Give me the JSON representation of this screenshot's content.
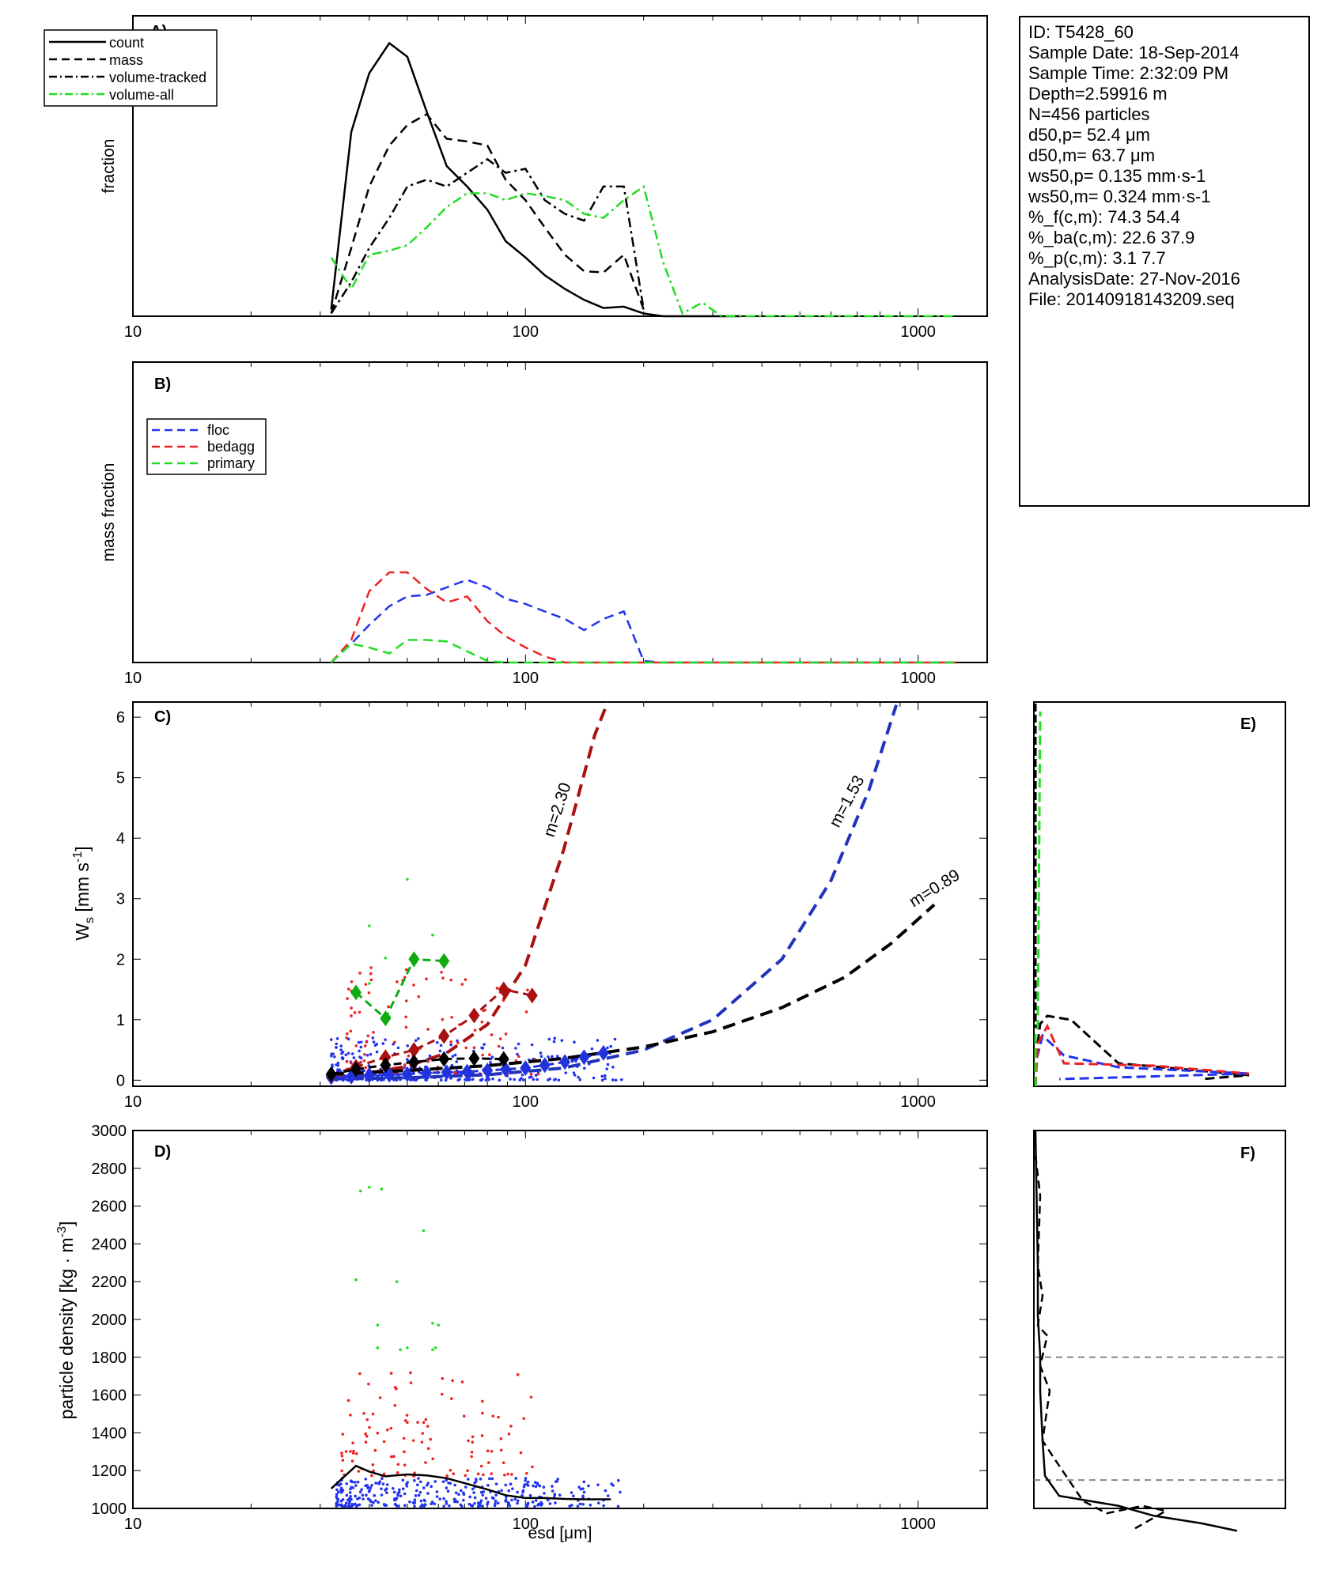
{
  "info": {
    "id": "ID: T5428_60",
    "sample_date": "Sample Date: 18-Sep-2014",
    "sample_time": "Sample Time:  2:32:09 PM",
    "depth": "Depth=2.59916 m",
    "n": "N=456 particles",
    "d50p": "d50,p=  52.4 μm",
    "d50m": "d50,m=  63.7 μm",
    "ws50p": "ws50,p= 0.135 mm·s-1",
    "ws50m": "ws50,m= 0.324 mm·s-1",
    "pf": "%_f(c,m): 74.3 54.4",
    "pba": "%_ba(c,m): 22.6 37.9",
    "pp": "%_p(c,m): 3.1 7.7",
    "analysis_date": "AnalysisDate: 27-Nov-2016",
    "file": "File: 20140918143209.seq"
  },
  "chart_data": [
    {
      "panel": "A)",
      "type": "line",
      "ylabel": "fraction",
      "x_scale": "log",
      "xlim": [
        10,
        1500
      ],
      "xticks": [
        "10",
        "100",
        "1000"
      ],
      "ylim": [
        0,
        0.22
      ],
      "legend": [
        "count",
        "mass",
        "volume-tracked",
        "volume-all"
      ],
      "legend_placement": "top-left",
      "series": [
        {
          "name": "count",
          "color": "#000000",
          "dash": "solid",
          "x": [
            32,
            36,
            40,
            45,
            50,
            56,
            63,
            71,
            80,
            89,
            100,
            112,
            126,
            141,
            158,
            178,
            200,
            224,
            251,
            282,
            316,
            355
          ],
          "y": [
            0.005,
            0.135,
            0.178,
            0.2,
            0.19,
            0.15,
            0.11,
            0.095,
            0.078,
            0.055,
            0.043,
            0.03,
            0.02,
            0.012,
            0.006,
            0.007,
            0.002,
            0,
            0,
            0,
            0,
            0
          ]
        },
        {
          "name": "mass",
          "color": "#000000",
          "dash": "dashed",
          "x": [
            32,
            36,
            40,
            45,
            50,
            56,
            63,
            71,
            80,
            89,
            100,
            112,
            126,
            141,
            158,
            178,
            200
          ],
          "y": [
            0.002,
            0.05,
            0.095,
            0.125,
            0.14,
            0.148,
            0.13,
            0.128,
            0.125,
            0.1,
            0.085,
            0.065,
            0.045,
            0.033,
            0.032,
            0.045,
            0.005
          ]
        },
        {
          "name": "volume-tracked",
          "color": "#000000",
          "dash": "dashdot",
          "x": [
            32,
            36,
            40,
            45,
            50,
            56,
            63,
            71,
            80,
            89,
            100,
            112,
            126,
            141,
            158,
            178,
            200
          ],
          "y": [
            0.002,
            0.025,
            0.05,
            0.072,
            0.095,
            0.1,
            0.095,
            0.105,
            0.115,
            0.105,
            0.108,
            0.085,
            0.075,
            0.07,
            0.095,
            0.095,
            0.005
          ]
        },
        {
          "name": "volume-all",
          "color": "#22dd22",
          "dash": "dashdot",
          "x": [
            32,
            36,
            40,
            45,
            50,
            56,
            63,
            71,
            80,
            89,
            100,
            112,
            126,
            141,
            158,
            178,
            200,
            224,
            251,
            282,
            316,
            355,
            400,
            500,
            700,
            1000,
            1250
          ],
          "y": [
            0.043,
            0.02,
            0.045,
            0.048,
            0.052,
            0.065,
            0.08,
            0.09,
            0.09,
            0.085,
            0.09,
            0.088,
            0.085,
            0.075,
            0.072,
            0.085,
            0.095,
            0.04,
            0.002,
            0.01,
            0.0,
            0,
            0,
            0,
            0,
            0,
            0
          ]
        }
      ]
    },
    {
      "panel": "B)",
      "type": "line",
      "ylabel": "mass fraction",
      "x_scale": "log",
      "xlim": [
        10,
        1500
      ],
      "xticks": [
        "10",
        "100",
        "1000"
      ],
      "ylim": [
        0,
        0.4
      ],
      "legend": [
        "floc",
        "bedagg",
        "primary"
      ],
      "legend_placement": "top-left",
      "series": [
        {
          "name": "floc",
          "color": "#2233ee",
          "dash": "dashed",
          "x": [
            32,
            36,
            40,
            45,
            50,
            56,
            63,
            71,
            80,
            89,
            100,
            112,
            126,
            141,
            158,
            178,
            200,
            224,
            251,
            316,
            400,
            500,
            700,
            1000,
            1250
          ],
          "y": [
            0.0,
            0.025,
            0.05,
            0.075,
            0.088,
            0.09,
            0.1,
            0.11,
            0.1,
            0.085,
            0.078,
            0.068,
            0.058,
            0.043,
            0.058,
            0.068,
            0.002,
            0,
            0,
            0,
            0,
            0,
            0,
            0,
            0
          ]
        },
        {
          "name": "bedagg",
          "color": "#ee2222",
          "dash": "dashed",
          "x": [
            32,
            36,
            40,
            45,
            50,
            56,
            63,
            71,
            80,
            89,
            100,
            112,
            126,
            141,
            158,
            200,
            251,
            316,
            400,
            500,
            700,
            1000,
            1250
          ],
          "y": [
            0.0,
            0.03,
            0.095,
            0.12,
            0.12,
            0.098,
            0.08,
            0.088,
            0.055,
            0.035,
            0.02,
            0.008,
            0.0,
            0,
            0,
            0,
            0,
            0,
            0,
            0,
            0,
            0,
            0
          ]
        },
        {
          "name": "primary",
          "color": "#22dd22",
          "dash": "dashed",
          "x": [
            32,
            36,
            40,
            45,
            50,
            56,
            63,
            71,
            80,
            89,
            100,
            112,
            126,
            141,
            158,
            200,
            251,
            316,
            400,
            500,
            700,
            1000,
            1250
          ],
          "y": [
            0.0,
            0.025,
            0.02,
            0.012,
            0.03,
            0.03,
            0.028,
            0.015,
            0.002,
            0.0,
            0,
            0,
            0,
            0,
            0,
            0,
            0,
            0,
            0,
            0,
            0,
            0,
            0
          ]
        }
      ]
    },
    {
      "panel": "C)",
      "type": "scatter",
      "ylabel": "Ws [mm s-1]",
      "x_scale": "log",
      "xlim": [
        10,
        1500
      ],
      "xticks": [
        "10",
        "100",
        "1000"
      ],
      "ylim": [
        -0.1,
        6.25
      ],
      "yticks": [
        "0",
        "1",
        "2",
        "3",
        "4",
        "5",
        "6"
      ],
      "fits": [
        {
          "label": "m=2.30",
          "color": "#aa1111",
          "x": [
            32,
            40,
            50,
            63,
            80,
            100,
            125,
            150,
            162
          ],
          "y": [
            0.08,
            0.12,
            0.23,
            0.45,
            0.92,
            1.9,
            3.8,
            5.7,
            6.25
          ]
        },
        {
          "label": "m=1.53",
          "color": "#2233bb",
          "x": [
            32,
            50,
            80,
            125,
            200,
            300,
            450,
            600,
            750,
            880
          ],
          "y": [
            0.02,
            0.04,
            0.09,
            0.2,
            0.5,
            1.0,
            2.0,
            3.3,
            4.8,
            6.2
          ]
        },
        {
          "label": "m=0.89",
          "color": "#000000",
          "x": [
            32,
            50,
            80,
            125,
            200,
            300,
            450,
            650,
            850,
            1100
          ],
          "y": [
            0.1,
            0.16,
            0.24,
            0.36,
            0.55,
            0.8,
            1.2,
            1.7,
            2.25,
            2.9
          ]
        }
      ],
      "binned_means": [
        {
          "name": "floc",
          "color": "#2233dd",
          "x": [
            32,
            36,
            40,
            45,
            50,
            56,
            63,
            71,
            80,
            89,
            100,
            112,
            126,
            141,
            158
          ],
          "y": [
            0.05,
            0.06,
            0.08,
            0.09,
            0.1,
            0.12,
            0.13,
            0.14,
            0.16,
            0.18,
            0.2,
            0.25,
            0.3,
            0.38,
            0.45
          ]
        },
        {
          "name": "bedagg",
          "color": "#aa1111",
          "x": [
            32,
            37,
            44,
            52,
            62,
            74,
            88,
            104
          ],
          "y": [
            0.09,
            0.22,
            0.38,
            0.5,
            0.73,
            1.07,
            1.5,
            1.4
          ]
        },
        {
          "name": "primary",
          "color": "#11aa11",
          "x": [
            37,
            44,
            52,
            62
          ],
          "y": [
            1.45,
            1.02,
            2.0,
            1.97
          ]
        },
        {
          "name": "all",
          "color": "#000000",
          "x": [
            32,
            37,
            44,
            52,
            62,
            74,
            88
          ],
          "y": [
            0.1,
            0.18,
            0.25,
            0.3,
            0.35,
            0.36,
            0.35
          ]
        }
      ],
      "scatter_points": [
        {
          "name": "floc",
          "color": "#2233ee",
          "x_range": [
            32,
            180
          ],
          "y_range": [
            0.0,
            0.7
          ],
          "count": 320
        },
        {
          "name": "bedagg",
          "color": "#ee2222",
          "x_range": [
            35,
            110
          ],
          "y_range": [
            0.1,
            1.9
          ],
          "count": 110
        },
        {
          "name": "primary",
          "color": "#22dd22",
          "x": [
            37,
            40,
            44,
            50,
            58,
            62,
            45,
            52,
            40
          ],
          "y": [
            1.5,
            2.55,
            2.02,
            3.32,
            2.4,
            2.0,
            1.05,
            1.9,
            1.6
          ]
        }
      ]
    },
    {
      "panel": "D)",
      "type": "scatter",
      "xlabel": "esd [μm]",
      "ylabel": "particle density [kg · m-3]",
      "x_scale": "log",
      "xlim": [
        10,
        1500
      ],
      "xticks": [
        "10",
        "100",
        "1000"
      ],
      "ylim": [
        1000,
        3000
      ],
      "yticks": [
        "1000",
        "1200",
        "1400",
        "1600",
        "1800",
        "2000",
        "2200",
        "2400",
        "2600",
        "2800",
        "3000"
      ],
      "mean_line": {
        "color": "#000000",
        "x": [
          32,
          37,
          40,
          44,
          50,
          56,
          63,
          71,
          80,
          89,
          100,
          112,
          126,
          141,
          165
        ],
        "y": [
          1105,
          1225,
          1195,
          1170,
          1180,
          1175,
          1160,
          1130,
          1100,
          1070,
          1055,
          1055,
          1050,
          1048,
          1048
        ]
      },
      "scatter_points": [
        {
          "name": "floc",
          "color": "#2233ee",
          "x_range": [
            33,
            175
          ],
          "y_range": [
            1010,
            1160
          ],
          "count": 320
        },
        {
          "name": "bedagg",
          "color": "#ee2222",
          "x_range": [
            34,
            105
          ],
          "y_range": [
            1170,
            1720
          ],
          "count": 110
        },
        {
          "name": "primary",
          "color": "#22dd22",
          "x": [
            38,
            40,
            43,
            47,
            55,
            58,
            60,
            37,
            42,
            50,
            58,
            42,
            48,
            59
          ],
          "y": [
            2680,
            2700,
            2690,
            2200,
            2470,
            1980,
            1970,
            2210,
            1970,
            1850,
            1840,
            1850,
            1840,
            1850
          ]
        }
      ]
    },
    {
      "panel": "E)",
      "type": "line",
      "series": [
        {
          "name": "all",
          "color": "#000000",
          "dash": "dashed"
        },
        {
          "name": "floc",
          "color": "#2233ee",
          "dash": "dashed"
        },
        {
          "name": "bedagg",
          "color": "#ee2222",
          "dash": "dashed"
        },
        {
          "name": "primary",
          "color": "#22dd22",
          "dash": "dashed"
        }
      ]
    },
    {
      "panel": "F)",
      "type": "line",
      "reference_lines": [
        1150,
        1800
      ],
      "series": [
        {
          "name": "count",
          "color": "#000000",
          "dash": "solid"
        },
        {
          "name": "mass",
          "color": "#000000",
          "dash": "dashed"
        }
      ]
    }
  ]
}
